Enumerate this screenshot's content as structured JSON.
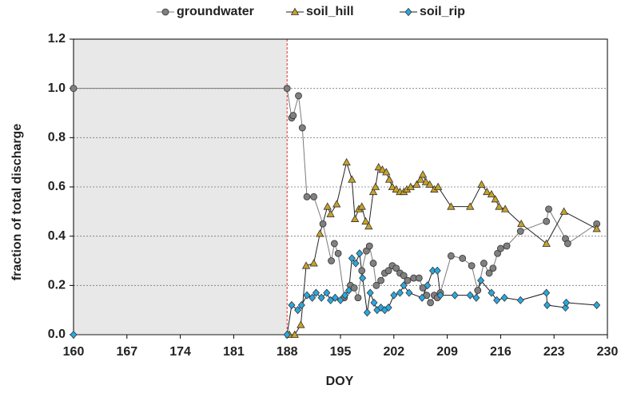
{
  "chart_data": {
    "type": "line",
    "x_label": "DOY",
    "y_label": "fraction of total discharge",
    "xlim": [
      160,
      230
    ],
    "xticks": [
      160,
      167,
      174,
      181,
      188,
      195,
      202,
      209,
      216,
      223,
      230
    ],
    "ylim": [
      0,
      1.2
    ],
    "yticks": [
      {
        "value": 0,
        "label": "0.0"
      },
      0.2,
      0.4,
      0.6,
      0.8,
      {
        "value": 1,
        "label": "1.0"
      },
      1.2
    ],
    "grid": true,
    "legend": "top",
    "shaded_xrange": [
      160,
      188
    ],
    "shade_color": "#e8e8e8",
    "divider_color": "#e03030",
    "series": [
      {
        "name": "groundwater",
        "marker": "circle",
        "color": "#808080",
        "line_color": "#7a7a7a",
        "x": [
          160,
          188,
          188.6,
          188.8,
          189.5,
          190,
          190.6,
          191.5,
          192.7,
          193.8,
          194.2,
          194.7,
          195.5,
          196.3,
          196.8,
          197.3,
          197.8,
          198.4,
          198.8,
          199.3,
          199.7,
          200.3,
          200.8,
          201.3,
          201.8,
          202.3,
          202.8,
          203.3,
          203.8,
          204.6,
          205.3,
          205.8,
          206.3,
          206.8,
          207.3,
          207.7,
          208.1,
          209.5,
          211,
          212.2,
          213,
          213.8,
          214.5,
          215,
          215.6,
          216,
          216.8,
          218.6,
          222,
          222.3,
          224.5,
          224.8,
          228.6
        ],
        "values": [
          1.0,
          1.0,
          0.88,
          0.89,
          0.97,
          0.84,
          0.56,
          0.56,
          0.45,
          0.3,
          0.37,
          0.33,
          0.15,
          0.2,
          0.19,
          0.15,
          0.26,
          0.34,
          0.36,
          0.29,
          0.2,
          0.22,
          0.25,
          0.26,
          0.28,
          0.27,
          0.25,
          0.24,
          0.22,
          0.23,
          0.23,
          0.19,
          0.16,
          0.13,
          0.16,
          0.15,
          0.17,
          0.32,
          0.31,
          0.28,
          0.18,
          0.29,
          0.25,
          0.27,
          0.33,
          0.35,
          0.36,
          0.42,
          0.46,
          0.51,
          0.39,
          0.37,
          0.45
        ]
      },
      {
        "name": "soil_hill",
        "marker": "triangle",
        "color": "#c9a227",
        "line_color": "#222222",
        "x": [
          188.3,
          189,
          189.8,
          190.5,
          191.5,
          192.3,
          193.3,
          193.7,
          194.5,
          195.8,
          196.5,
          196.9,
          197.4,
          197.8,
          198.3,
          198.7,
          199.3,
          199.6,
          200,
          200.5,
          201,
          201.4,
          201.8,
          202.3,
          202.8,
          203.3,
          203.7,
          204.2,
          205,
          205.5,
          205.8,
          206.2,
          206.7,
          207.3,
          207.8,
          209.5,
          212,
          213.5,
          214.2,
          214.8,
          215.3,
          215.8,
          216.6,
          218.7,
          222,
          224.3,
          228.6
        ],
        "values": [
          0.0,
          0.0,
          0.04,
          0.28,
          0.29,
          0.41,
          0.52,
          0.49,
          0.53,
          0.7,
          0.63,
          0.47,
          0.51,
          0.52,
          0.46,
          0.44,
          0.58,
          0.6,
          0.68,
          0.67,
          0.66,
          0.63,
          0.6,
          0.59,
          0.58,
          0.58,
          0.59,
          0.6,
          0.61,
          0.63,
          0.65,
          0.62,
          0.61,
          0.59,
          0.6,
          0.52,
          0.52,
          0.61,
          0.58,
          0.57,
          0.55,
          0.52,
          0.51,
          0.45,
          0.37,
          0.5,
          0.43
        ]
      },
      {
        "name": "soil_rip",
        "marker": "diamond",
        "color": "#29a8e0",
        "line_color": "#1a1a1a",
        "x": [
          160,
          188,
          188.6,
          189.4,
          189.9,
          190.6,
          191.3,
          191.8,
          192.5,
          193.2,
          193.7,
          194.3,
          195,
          195.6,
          196.1,
          196.5,
          197,
          197.5,
          197.9,
          198.5,
          198.9,
          199.4,
          199.8,
          200.3,
          200.8,
          201.3,
          202,
          202.8,
          203.3,
          204,
          205.7,
          206.4,
          207.1,
          207.7,
          208.1,
          210,
          212,
          212.8,
          213.4,
          214.8,
          215.5,
          216.5,
          218.6,
          222,
          222.1,
          224.5,
          224.6,
          228.6
        ],
        "values": [
          0.0,
          0.0,
          0.12,
          0.1,
          0.12,
          0.16,
          0.15,
          0.17,
          0.15,
          0.17,
          0.14,
          0.15,
          0.14,
          0.16,
          0.18,
          0.31,
          0.29,
          0.33,
          0.23,
          0.09,
          0.17,
          0.13,
          0.1,
          0.11,
          0.1,
          0.11,
          0.16,
          0.17,
          0.2,
          0.17,
          0.15,
          0.2,
          0.26,
          0.26,
          0.16,
          0.16,
          0.16,
          0.15,
          0.22,
          0.17,
          0.14,
          0.15,
          0.14,
          0.17,
          0.12,
          0.11,
          0.13,
          0.12
        ]
      }
    ]
  }
}
